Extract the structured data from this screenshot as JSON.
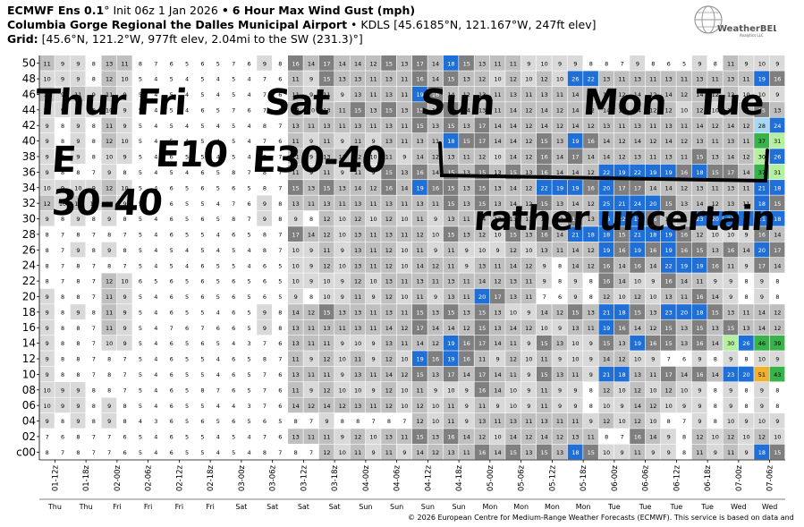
{
  "title": {
    "brand": "ECMWF Ens 0.1",
    "brand_deg": "°",
    "init": "Init 06z 1 Jan 2026",
    "bullet": "•",
    "product": "6 Hour Max Wind Gust (mph)",
    "station": "Columbia Gorge Regional the Dalles Municipal Airport",
    "station_info": "• KDLS [45.6185°N, 121.167°W, 247ft elev]",
    "grid_label": "Grid:",
    "grid_info": "[45.6°N, 121.2°W, 977ft elev, 2.04mi to the SW (231.3)°]"
  },
  "logo": {
    "text": "WeatherBELL",
    "sub": "Analytics LLC"
  },
  "copyright": "© 2026 European Centre for Medium-Range Weather Forecasts (ECMWF). This service is based on data and",
  "annotations": {
    "days_1": "Thur Fri",
    "days_sat": "Sat",
    "days_sun": "Sun",
    "days_mon": "Mon",
    "days_tue": "Tue",
    "dir_e": "E",
    "e_10": "E10",
    "e_30_40": "E30-40",
    "speed_30_40": "30-40",
    "uncertain": "rather uncertain"
  },
  "colors": {
    "light_gray": "#d9d9d9",
    "mid_gray": "#bfbfbf",
    "dark_gray": "#7f7f7f",
    "blue": "#1f6fd6",
    "light_blue": "#a8d8f0",
    "green": "#38b34a",
    "light_green": "#b4f0a0",
    "orange": "#f0b030"
  },
  "chart_data": {
    "type": "heatmap",
    "y_label": "",
    "y_ticks": [
      "c00",
      "02",
      "04",
      "06",
      "08",
      "10",
      "12",
      "14",
      "16",
      "18",
      "20",
      "22",
      "24",
      "26",
      "28",
      "30",
      "32",
      "34",
      "36",
      "38",
      "40",
      "42",
      "44",
      "46",
      "48",
      "50"
    ],
    "x_ticks": [
      "01-12z",
      "01-18z",
      "02-00z",
      "02-06z",
      "02-12z",
      "02-18z",
      "03-00z",
      "03-06z",
      "03-12z",
      "03-18z",
      "04-00z",
      "04-06z",
      "04-12z",
      "04-18z",
      "05-00z",
      "05-06z",
      "05-12z",
      "05-18z",
      "06-00z",
      "06-06z",
      "06-12z",
      "06-18z",
      "07-00z",
      "07-06z"
    ],
    "day_labels": [
      "Thu",
      "Thu",
      "Fri",
      "Fri",
      "Fri",
      "Fri",
      "Sat",
      "Sat",
      "Sat",
      "Sat",
      "Sun",
      "Sun",
      "Sun",
      "Sun",
      "Mon",
      "Mon",
      "Mon",
      "Mon",
      "Tue",
      "Tue",
      "Tue",
      "Tue",
      "Wed",
      "Wed"
    ],
    "columns": 24,
    "sub_columns_per_period": 2,
    "note": "",
    "values": [
      [
        8,
        8,
        7,
        5,
        6,
        5,
        5,
        8,
        8,
        12,
        11,
        11,
        14,
        13,
        16,
        15,
        15,
        18,
        10,
        11,
        9,
        11,
        11,
        18
      ],
      [
        7,
        8,
        7,
        5,
        6,
        5,
        5,
        7,
        13,
        11,
        12,
        13,
        15,
        16,
        12,
        14,
        14,
        13,
        8,
        16,
        9,
        12,
        12,
        12
      ],
      [
        9,
        9,
        9,
        4,
        6,
        6,
        6,
        6,
        8,
        9,
        8,
        8,
        12,
        11,
        13,
        13,
        13,
        11,
        12,
        12,
        8,
        9,
        10,
        10
      ],
      [
        10,
        9,
        9,
        5,
        6,
        5,
        4,
        7,
        14,
        14,
        13,
        12,
        12,
        11,
        11,
        10,
        11,
        9,
        10,
        14,
        10,
        9,
        9,
        9
      ],
      [
        10,
        9,
        8,
        5,
        6,
        8,
        6,
        7,
        11,
        12,
        10,
        12,
        11,
        10,
        16,
        10,
        11,
        9,
        12,
        12,
        12,
        9,
        9,
        9
      ],
      [
        9,
        8,
        8,
        5,
        6,
        5,
        6,
        7,
        13,
        11,
        13,
        14,
        15,
        17,
        17,
        11,
        15,
        11,
        21,
        13,
        17,
        16,
        23,
        51
      ],
      [
        9,
        8,
        8,
        5,
        6,
        5,
        6,
        8,
        11,
        12,
        11,
        12,
        19,
        19,
        11,
        12,
        11,
        10,
        14,
        10,
        7,
        9,
        9,
        10
      ],
      [
        9,
        8,
        10,
        5,
        6,
        6,
        4,
        7,
        13,
        11,
        10,
        13,
        14,
        19,
        17,
        11,
        15,
        10,
        15,
        19,
        15,
        16,
        30,
        46
      ],
      [
        9,
        8,
        11,
        5,
        7,
        7,
        6,
        9,
        13,
        13,
        13,
        14,
        17,
        14,
        15,
        14,
        10,
        13,
        19,
        14,
        15,
        15,
        15,
        14
      ],
      [
        9,
        9,
        11,
        5,
        6,
        5,
        6,
        9,
        14,
        15,
        13,
        13,
        15,
        15,
        15,
        10,
        14,
        15,
        21,
        15,
        23,
        18,
        13,
        14
      ],
      [
        9,
        8,
        11,
        5,
        6,
        6,
        6,
        6,
        9,
        10,
        11,
        12,
        11,
        13,
        20,
        13,
        7,
        9,
        12,
        12,
        13,
        16,
        9,
        9
      ],
      [
        8,
        8,
        12,
        6,
        6,
        6,
        6,
        6,
        10,
        10,
        12,
        13,
        13,
        13,
        14,
        13,
        9,
        9,
        16,
        10,
        16,
        11,
        9,
        9
      ],
      [
        8,
        8,
        8,
        5,
        5,
        6,
        5,
        6,
        10,
        12,
        13,
        12,
        14,
        11,
        13,
        14,
        9,
        14,
        16,
        16,
        22,
        19,
        11,
        17
      ],
      [
        8,
        9,
        9,
        5,
        5,
        5,
        5,
        8,
        10,
        11,
        13,
        12,
        11,
        11,
        10,
        12,
        13,
        14,
        19,
        19,
        19,
        15,
        16,
        20
      ],
      [
        8,
        8,
        8,
        5,
        6,
        5,
        6,
        8,
        17,
        12,
        13,
        13,
        12,
        15,
        12,
        15,
        16,
        21,
        18,
        21,
        19,
        12,
        10,
        16
      ],
      [
        9,
        9,
        9,
        5,
        6,
        6,
        8,
        9,
        9,
        12,
        12,
        12,
        11,
        13,
        14,
        13,
        13,
        15,
        26,
        19,
        13,
        23,
        21,
        21
      ],
      [
        12,
        12,
        11,
        5,
        6,
        5,
        7,
        9,
        13,
        13,
        13,
        13,
        13,
        15,
        15,
        14,
        15,
        14,
        25,
        24,
        15,
        14,
        13,
        18
      ],
      [
        10,
        10,
        12,
        5,
        6,
        6,
        6,
        8,
        15,
        15,
        14,
        16,
        19,
        15,
        15,
        14,
        22,
        19,
        20,
        17,
        14,
        13,
        13,
        21
      ],
      [
        9,
        8,
        9,
        5,
        5,
        6,
        8,
        8,
        11,
        11,
        11,
        15,
        16,
        15,
        15,
        15,
        16,
        14,
        22,
        22,
        19,
        18,
        17,
        37
      ],
      [
        9,
        9,
        10,
        5,
        6,
        5,
        5,
        8,
        11,
        13,
        12,
        11,
        14,
        13,
        12,
        14,
        16,
        17,
        14,
        13,
        13,
        15,
        14,
        30
      ],
      [
        9,
        9,
        12,
        5,
        5,
        5,
        5,
        7,
        11,
        11,
        11,
        13,
        13,
        18,
        17,
        14,
        15,
        19,
        14,
        14,
        14,
        13,
        13,
        37
      ],
      [
        9,
        9,
        11,
        5,
        5,
        5,
        5,
        8,
        13,
        13,
        13,
        13,
        15,
        15,
        17,
        14,
        14,
        14,
        13,
        13,
        13,
        14,
        14,
        28
      ],
      [
        10,
        10,
        10,
        5,
        5,
        6,
        7,
        7,
        12,
        13,
        15,
        15,
        15,
        17,
        13,
        14,
        14,
        14,
        14,
        14,
        12,
        12,
        13,
        15
      ],
      [
        11,
        11,
        11,
        5,
        5,
        5,
        5,
        7,
        11,
        11,
        13,
        13,
        19,
        14,
        13,
        13,
        13,
        14,
        14,
        14,
        14,
        14,
        12,
        10
      ],
      [
        10,
        9,
        12,
        5,
        5,
        5,
        5,
        7,
        11,
        15,
        13,
        13,
        16,
        15,
        12,
        12,
        12,
        26,
        13,
        13,
        13,
        13,
        13,
        19
      ],
      [
        11,
        9,
        13,
        8,
        6,
        6,
        7,
        9,
        16,
        17,
        14,
        15,
        17,
        18,
        13,
        11,
        10,
        9,
        8,
        9,
        6,
        9,
        11,
        10
      ]
    ]
  }
}
